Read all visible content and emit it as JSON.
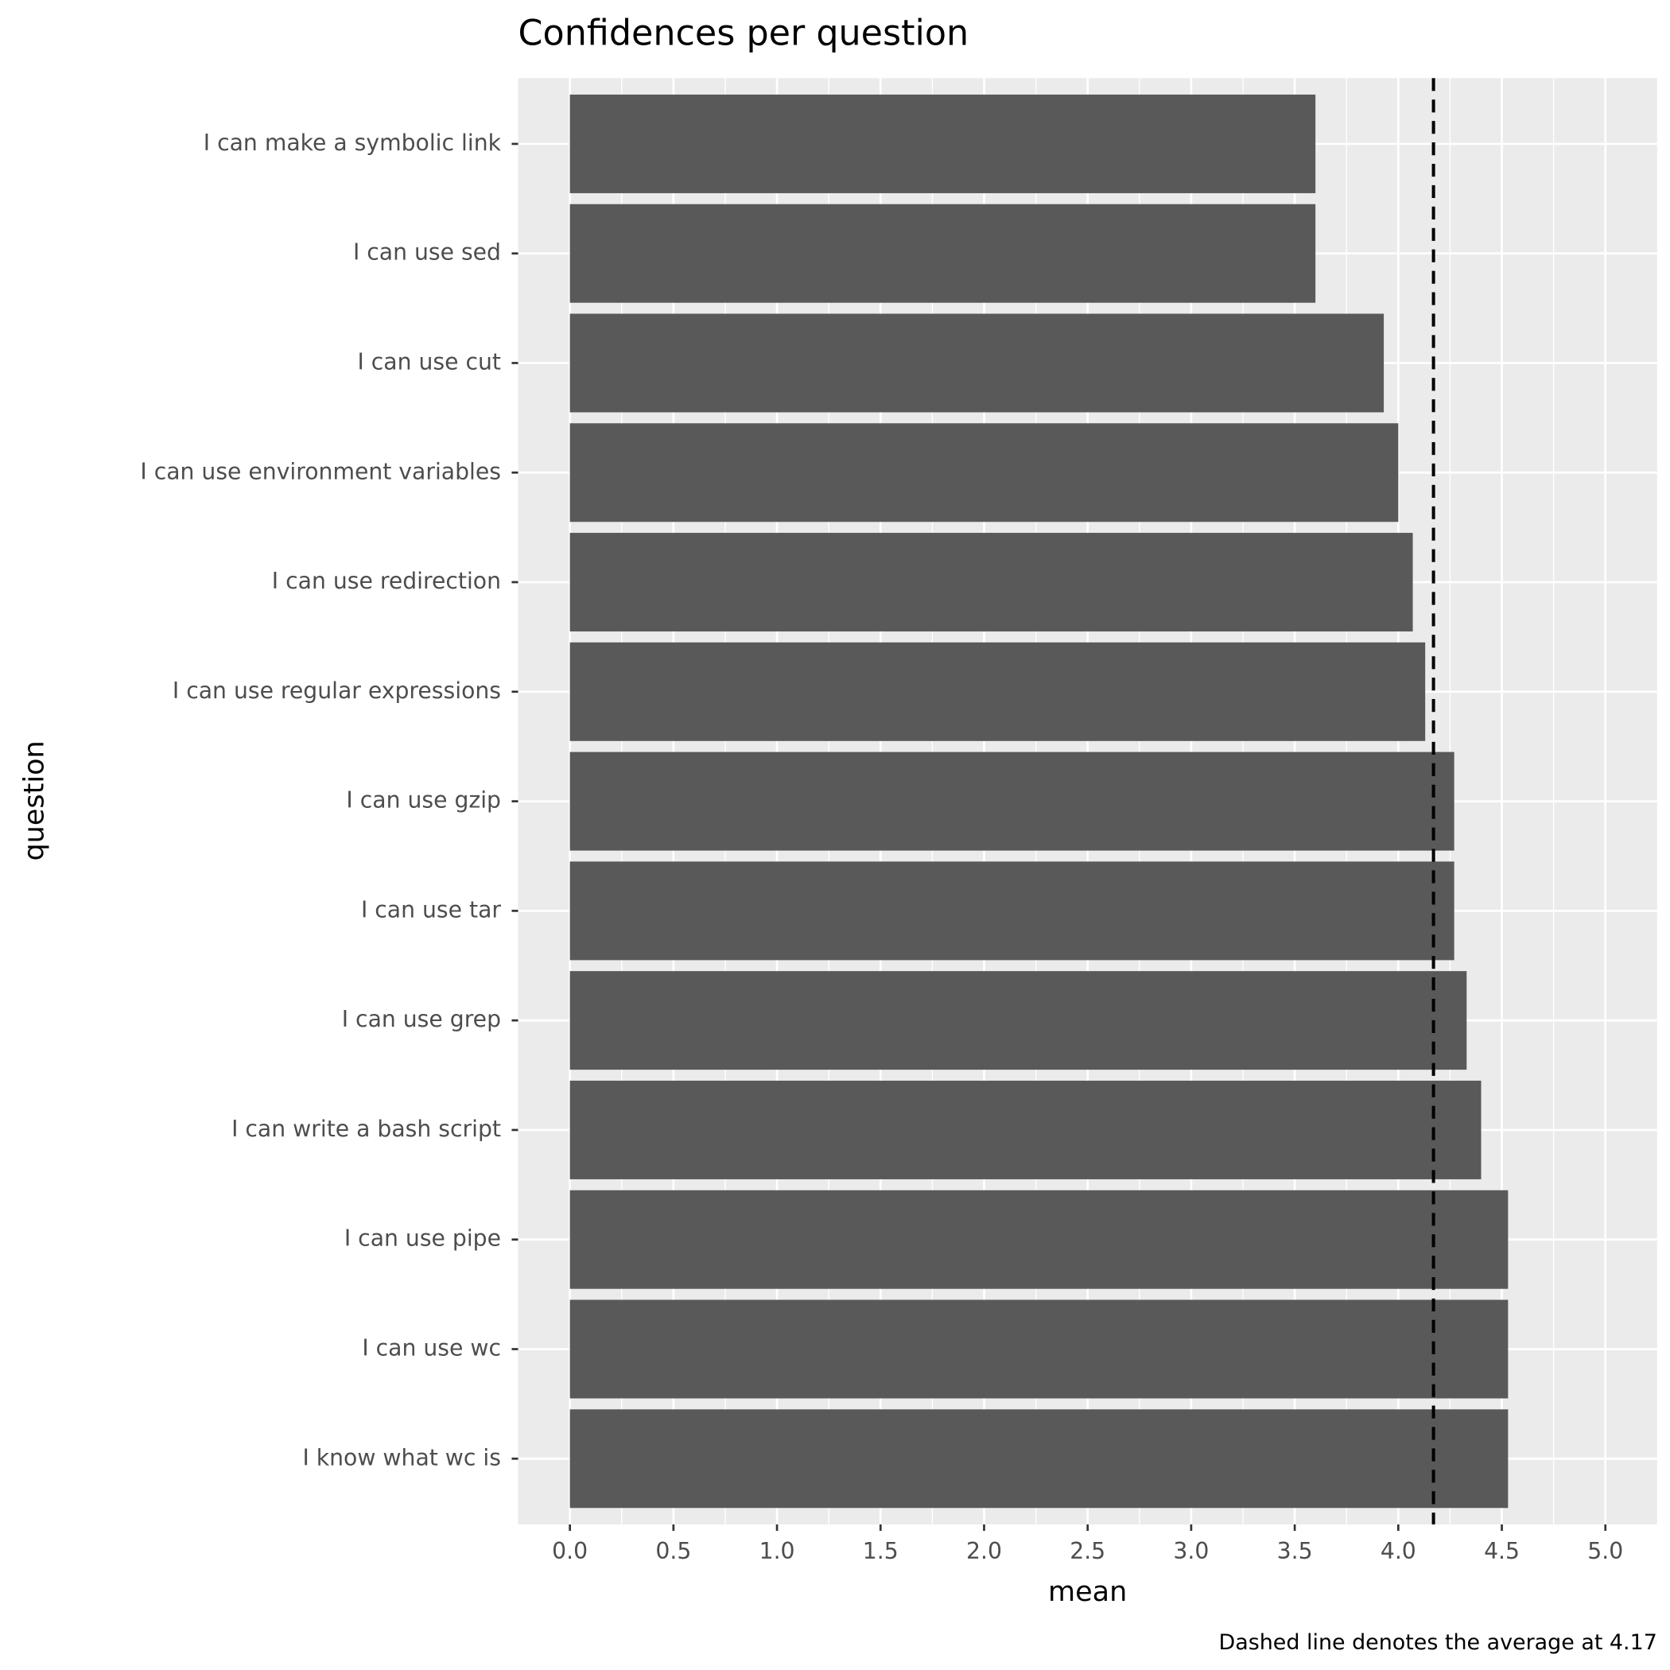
{
  "chart_data": {
    "type": "bar",
    "orientation": "horizontal",
    "title": "Confidences per question",
    "x_label": "mean",
    "y_label": "question",
    "caption": "Dashed line denotes the average at 4.17",
    "average": 4.17,
    "categories": [
      "I can make a symbolic link",
      "I can use sed",
      "I can use cut",
      "I can use environment variables",
      "I can use redirection",
      "I can use regular expressions",
      "I can use gzip",
      "I can use tar",
      "I can use grep",
      "I can write a bash script",
      "I can use pipe",
      "I can use wc",
      "I know what wc is"
    ],
    "values": [
      3.6,
      3.6,
      3.93,
      4.0,
      4.07,
      4.13,
      4.27,
      4.27,
      4.33,
      4.4,
      4.53,
      4.53,
      4.53
    ],
    "color": "#595959",
    "xlim": [
      -0.25,
      5.25
    ],
    "xticks": [
      {
        "value": 0,
        "label": "0.0"
      },
      0.5,
      {
        "value": 1,
        "label": "1.0"
      },
      1.5,
      {
        "value": 2,
        "label": "2.0"
      },
      2.5,
      {
        "value": 3,
        "label": "3.0"
      },
      3.5,
      {
        "value": 4,
        "label": "4.0"
      },
      4.5,
      {
        "value": 5,
        "label": "5.0"
      }
    ],
    "grid": true
  }
}
